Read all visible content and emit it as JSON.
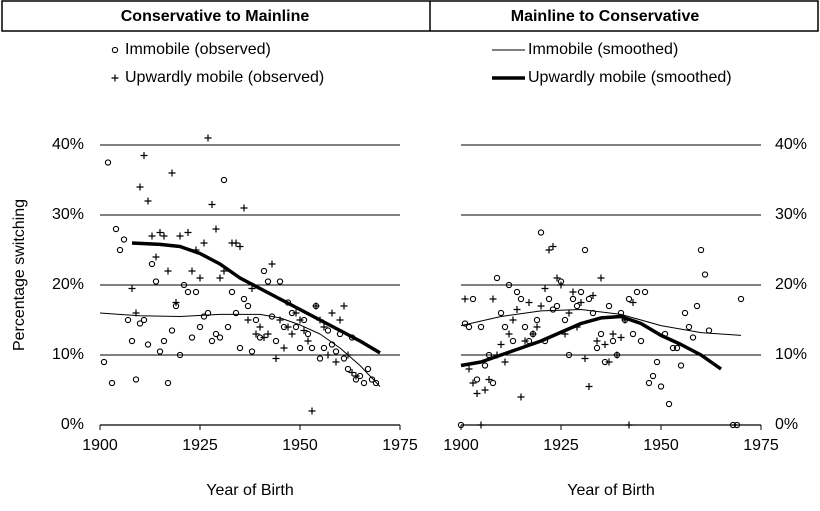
{
  "chart_data": [
    {
      "type": "scatter",
      "title": "Conservative to Mainline",
      "x_label": "Year of Birth",
      "y_label": "Percentage switching",
      "xlim": [
        1900,
        1975
      ],
      "xticks": [
        1900,
        1925,
        1950,
        1975
      ],
      "ylim": [
        0,
        40
      ],
      "yticks": [
        {
          "value": 0,
          "label": "0%"
        },
        {
          "value": 10,
          "label": "10%"
        },
        {
          "value": 20,
          "label": "20%"
        },
        {
          "value": 30,
          "label": "30%"
        },
        {
          "value": 40,
          "label": "40%"
        }
      ],
      "yaxis_side": "left",
      "grid": true,
      "series": [
        {
          "name": "Immobile (observed)",
          "marker": "circle",
          "color": "#000000",
          "x": [
            1901,
            1902,
            1903,
            1904,
            1905,
            1906,
            1907,
            1908,
            1909,
            1910,
            1911,
            1912,
            1913,
            1914,
            1915,
            1916,
            1917,
            1918,
            1919,
            1920,
            1921,
            1922,
            1923,
            1924,
            1925,
            1926,
            1927,
            1928,
            1929,
            1930,
            1931,
            1932,
            1933,
            1934,
            1935,
            1936,
            1937,
            1938,
            1939,
            1940,
            1941,
            1942,
            1943,
            1944,
            1945,
            1946,
            1947,
            1948,
            1949,
            1950,
            1951,
            1952,
            1953,
            1954,
            1955,
            1956,
            1957,
            1958,
            1959,
            1960,
            1961,
            1962,
            1963,
            1964,
            1965,
            1966,
            1967,
            1968,
            1969
          ],
          "values": [
            9,
            37.5,
            6,
            28,
            25,
            26.5,
            15,
            12,
            6.5,
            14.5,
            15,
            11.5,
            23,
            20.5,
            10.5,
            12,
            6,
            13.5,
            17,
            10,
            20,
            19,
            12.5,
            19,
            14,
            15.5,
            16,
            12,
            13,
            12.5,
            35,
            14,
            19,
            16,
            11,
            18,
            17,
            10.5,
            15,
            12.5,
            22,
            20.5,
            15.5,
            12,
            20.5,
            14,
            17.5,
            16,
            14,
            11,
            15,
            13,
            11,
            17,
            9.5,
            11,
            13.5,
            11.5,
            10.5,
            13,
            9.5,
            8,
            12.5,
            6.5,
            7,
            6,
            8,
            6.5,
            6
          ]
        },
        {
          "name": "Upwardly mobile (observed)",
          "marker": "plus",
          "color": "#000000",
          "x": [
            1908,
            1909,
            1910,
            1911,
            1912,
            1913,
            1914,
            1915,
            1916,
            1917,
            1918,
            1919,
            1920,
            1922,
            1923,
            1924,
            1925,
            1926,
            1927,
            1928,
            1929,
            1930,
            1931,
            1933,
            1934,
            1935,
            1936,
            1937,
            1938,
            1939,
            1940,
            1941,
            1942,
            1943,
            1944,
            1945,
            1946,
            1947,
            1948,
            1949,
            1950,
            1951,
            1952,
            1953,
            1954,
            1955,
            1956,
            1957,
            1958,
            1959,
            1960,
            1961,
            1962,
            1963,
            1964
          ],
          "values": [
            19.5,
            16,
            34,
            38.5,
            32,
            27,
            24,
            27.5,
            27,
            22,
            36,
            17.5,
            27,
            27.5,
            22,
            25,
            21,
            26,
            41,
            31.5,
            28,
            21,
            22,
            26,
            26,
            25.5,
            31,
            15,
            19.5,
            13,
            14,
            12.5,
            13,
            23,
            9.5,
            15,
            11,
            14,
            13,
            16,
            15,
            13.5,
            12,
            2,
            17,
            15,
            14,
            10,
            16,
            9,
            15,
            17,
            10,
            7.5,
            7
          ]
        },
        {
          "marker": "none",
          "line_width": 1,
          "color": "#000000",
          "x": [
            1900,
            1910,
            1920,
            1930,
            1940,
            1945,
            1950,
            1955,
            1960,
            1965,
            1970
          ],
          "values": [
            16,
            15.6,
            15.5,
            15.8,
            15.8,
            15.3,
            14.3,
            13,
            11,
            8.5,
            5.5
          ]
        },
        {
          "marker": "none",
          "line_width": 3.5,
          "color": "#000000",
          "x": [
            1908,
            1915,
            1920,
            1925,
            1930,
            1935,
            1940,
            1945,
            1950,
            1955,
            1960,
            1965,
            1970
          ],
          "values": [
            26,
            25.8,
            25.5,
            24.5,
            23,
            21,
            19.5,
            18,
            16.5,
            15,
            13.5,
            12,
            10.3
          ]
        }
      ]
    },
    {
      "type": "scatter",
      "title": "Mainline to Conservative",
      "x_label": "Year of Birth",
      "xlim": [
        1900,
        1975
      ],
      "xticks": [
        1900,
        1925,
        1950,
        1975
      ],
      "ylim": [
        0,
        40
      ],
      "yticks": [
        {
          "value": 0,
          "label": "0%"
        },
        {
          "value": 10,
          "label": "10%"
        },
        {
          "value": 20,
          "label": "20%"
        },
        {
          "value": 30,
          "label": "30%"
        },
        {
          "value": 40,
          "label": "40%"
        }
      ],
      "yaxis_side": "right",
      "grid": true,
      "series": [
        {
          "marker": "circle",
          "color": "#000000",
          "x": [
            1900,
            1901,
            1902,
            1903,
            1904,
            1905,
            1906,
            1907,
            1908,
            1909,
            1910,
            1911,
            1912,
            1913,
            1914,
            1915,
            1916,
            1917,
            1918,
            1919,
            1920,
            1921,
            1922,
            1923,
            1924,
            1925,
            1926,
            1927,
            1928,
            1929,
            1930,
            1931,
            1932,
            1933,
            1934,
            1935,
            1936,
            1937,
            1938,
            1939,
            1940,
            1941,
            1942,
            1943,
            1944,
            1945,
            1946,
            1947,
            1948,
            1949,
            1950,
            1951,
            1952,
            1953,
            1954,
            1955,
            1956,
            1957,
            1958,
            1959,
            1960,
            1961,
            1962,
            1968,
            1969,
            1970
          ],
          "values": [
            0,
            14.5,
            14,
            18,
            6.5,
            14,
            8.5,
            10,
            6,
            21,
            16,
            14,
            20,
            12,
            19,
            18,
            14,
            12,
            13,
            15,
            27.5,
            12,
            18,
            16.5,
            17,
            20.5,
            15,
            10,
            18,
            17,
            19,
            25,
            18,
            16,
            11,
            13,
            9,
            17,
            12,
            10,
            16,
            15,
            18,
            13,
            19,
            12,
            19,
            6,
            7,
            9,
            5.5,
            13,
            3,
            11,
            11,
            8.5,
            16,
            14,
            12.5,
            17,
            25,
            21.5,
            13.5,
            0,
            0,
            18
          ]
        },
        {
          "marker": "plus",
          "color": "#000000",
          "x": [
            1901,
            1902,
            1903,
            1904,
            1905,
            1906,
            1907,
            1908,
            1909,
            1910,
            1911,
            1912,
            1913,
            1914,
            1915,
            1916,
            1917,
            1918,
            1919,
            1920,
            1921,
            1922,
            1923,
            1924,
            1925,
            1926,
            1927,
            1928,
            1929,
            1930,
            1931,
            1932,
            1933,
            1934,
            1935,
            1936,
            1937,
            1938,
            1939,
            1940,
            1941,
            1942,
            1943
          ],
          "values": [
            18,
            8,
            6,
            4.5,
            0,
            5,
            6.5,
            18,
            10,
            11.5,
            9,
            13,
            15,
            16.5,
            4,
            12,
            17.5,
            13,
            14,
            17,
            19.5,
            25,
            25.5,
            21,
            20,
            13,
            16,
            19,
            14,
            17.5,
            9.5,
            5.5,
            18.5,
            12,
            21,
            11.5,
            9,
            13,
            10,
            12.5,
            15,
            0,
            17.5
          ]
        },
        {
          "name": "Immobile (smoothed)",
          "marker": "none",
          "line_width": 1,
          "color": "#000000",
          "x": [
            1900,
            1910,
            1920,
            1930,
            1940,
            1950,
            1960,
            1970
          ],
          "values": [
            14.2,
            15.5,
            16.3,
            16.5,
            15.8,
            14.2,
            13.2,
            12.8
          ]
        },
        {
          "name": "Upwardly mobile (smoothed)",
          "marker": "none",
          "line_width": 3.5,
          "color": "#000000",
          "x": [
            1900,
            1905,
            1910,
            1920,
            1930,
            1935,
            1940,
            1945,
            1950,
            1955,
            1960,
            1965
          ],
          "values": [
            8.5,
            9,
            10,
            12,
            14.5,
            15.3,
            15.5,
            14.5,
            12.8,
            11.5,
            10,
            8
          ]
        }
      ]
    }
  ]
}
